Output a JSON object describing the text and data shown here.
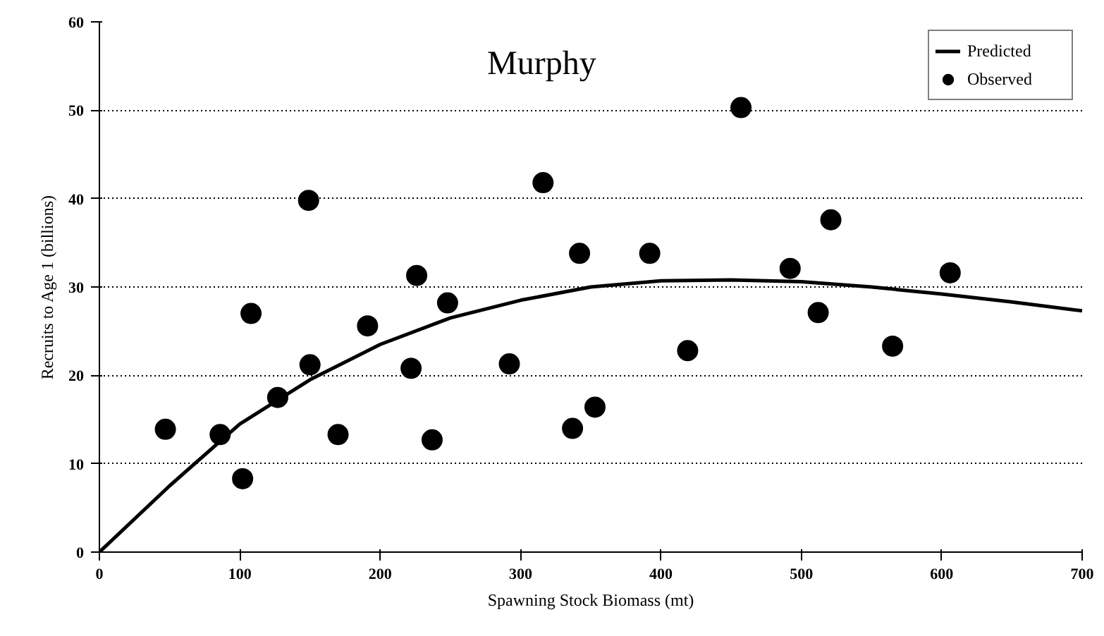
{
  "chart_data": {
    "type": "scatter",
    "title": "Murphy",
    "xlabel": "Spawning Stock Biomass (mt)",
    "ylabel": "Recruits to Age 1 (billions)",
    "xlim": [
      0,
      700
    ],
    "ylim": [
      0,
      60
    ],
    "xticks": [
      0,
      100,
      200,
      300,
      400,
      500,
      600,
      700
    ],
    "yticks": [
      0,
      10,
      20,
      30,
      40,
      50,
      60
    ],
    "grid": "y",
    "legend": "top right",
    "marker": "circle",
    "series": [
      {
        "name": "Predicted",
        "type": "line",
        "color": "#000000",
        "line_style": "solid",
        "marker": "none",
        "x": [
          0,
          50,
          100,
          150,
          200,
          250,
          300,
          350,
          400,
          450,
          500,
          550,
          600,
          650,
          700
        ],
        "values": [
          0,
          7.5,
          14.5,
          19.5,
          23.5,
          26.5,
          28.5,
          30,
          30.7,
          30.8,
          30.6,
          30,
          29.2,
          28.3,
          27.3
        ]
      },
      {
        "name": "Observed",
        "color": "#000000",
        "x": [
          47,
          86,
          102,
          108,
          127,
          149,
          150,
          170,
          191,
          222,
          226,
          237,
          248,
          292,
          316,
          337,
          342,
          353,
          392,
          419,
          457,
          492,
          512,
          521,
          565,
          606
        ],
        "values": [
          13.9,
          13.3,
          8.3,
          27,
          17.5,
          39.8,
          21.2,
          13.3,
          25.6,
          20.8,
          31.3,
          12.7,
          28.2,
          21.3,
          41.8,
          14,
          33.8,
          16.4,
          33.8,
          22.8,
          50.3,
          32.1,
          27.1,
          37.6,
          23.3,
          31.6
        ]
      }
    ]
  }
}
